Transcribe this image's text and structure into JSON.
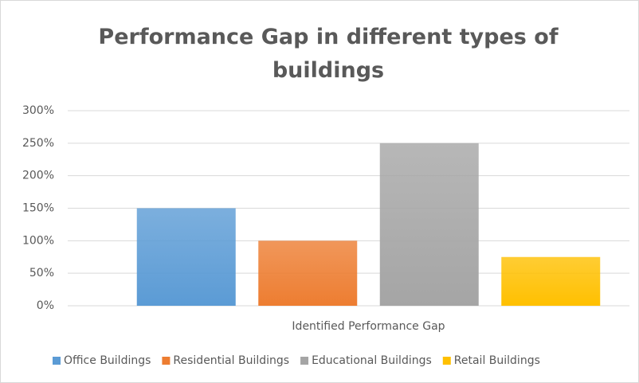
{
  "chart_data": {
    "type": "bar",
    "title": "Performance Gap in different types of buildings",
    "categories": [
      "Identified Performance Gap"
    ],
    "series": [
      {
        "name": "Office Buildings",
        "color": "#5b9bd5",
        "values": [
          150
        ]
      },
      {
        "name": "Residential Buildings",
        "color": "#ed7d31",
        "values": [
          100
        ]
      },
      {
        "name": "Educational Buildings",
        "color": "#a5a5a5",
        "values": [
          250
        ]
      },
      {
        "name": "Retail Buildings",
        "color": "#ffc000",
        "values": [
          75
        ]
      }
    ],
    "ylim": [
      0,
      300
    ],
    "yticks": [
      {
        "value": 0,
        "label": "0%"
      },
      {
        "value": 50,
        "label": "50%"
      },
      {
        "value": 100,
        "label": "100%"
      },
      {
        "value": 150,
        "label": "150%"
      },
      {
        "value": 200,
        "label": "200%"
      },
      {
        "value": 250,
        "label": "250%"
      },
      {
        "value": 300,
        "label": "300%"
      }
    ],
    "grid": true,
    "legend": "bottom"
  }
}
